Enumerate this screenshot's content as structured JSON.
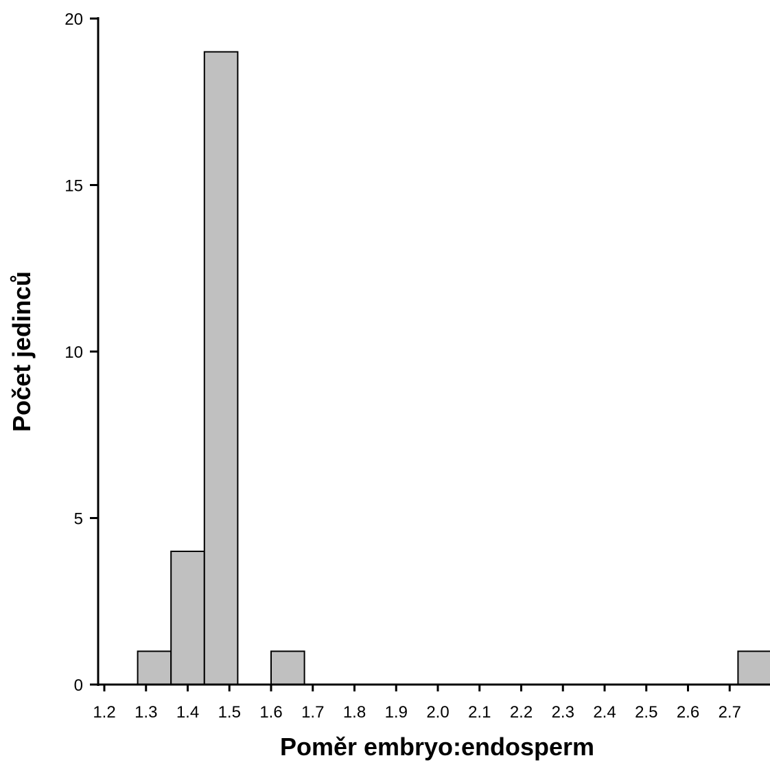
{
  "chart_data": {
    "type": "bar",
    "title": "",
    "xlabel": "Poměr embryo:endosperm",
    "ylabel": "Počet jedinců",
    "ylim": [
      0,
      20
    ],
    "xlim": [
      1.2,
      2.8
    ],
    "y_ticks": [
      "0",
      "5",
      "10",
      "15",
      "20"
    ],
    "x_ticks": [
      "1.2",
      "1.3",
      "1.4",
      "1.5",
      "1.6",
      "1.7",
      "1.8",
      "1.9",
      "2.0",
      "2.1",
      "2.2",
      "2.3",
      "2.4",
      "2.5",
      "2.6",
      "2.7"
    ],
    "bins": [
      {
        "start": 1.28,
        "end": 1.36,
        "count": 1
      },
      {
        "start": 1.36,
        "end": 1.44,
        "count": 4
      },
      {
        "start": 1.44,
        "end": 1.52,
        "count": 19
      },
      {
        "start": 1.6,
        "end": 1.68,
        "count": 1
      },
      {
        "start": 2.72,
        "end": 2.8,
        "count": 1
      }
    ],
    "bar_color": "#c0c0c0",
    "edge_color": "#000000",
    "grid": false,
    "legend": "none"
  }
}
